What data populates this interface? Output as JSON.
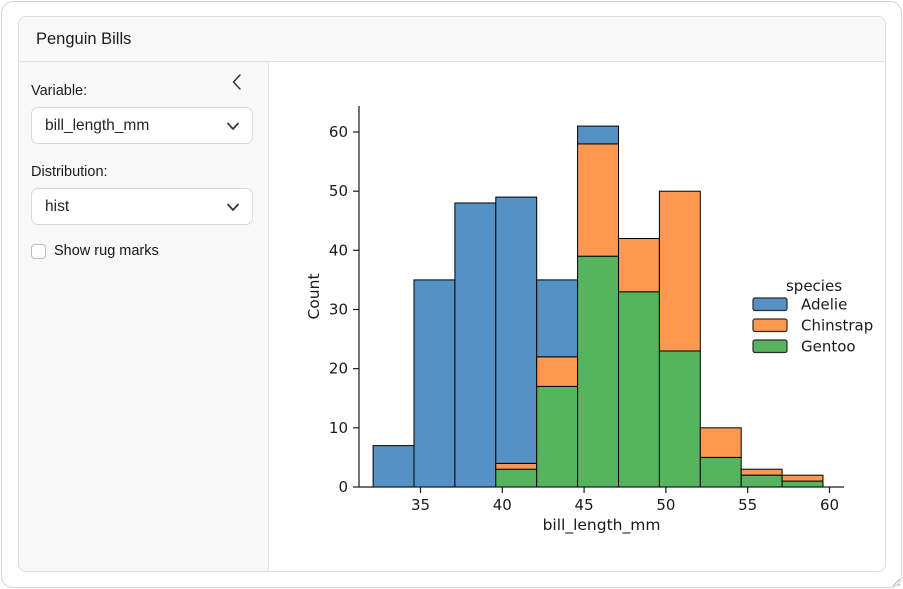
{
  "window": {
    "title": "Penguin Bills"
  },
  "sidebar": {
    "collapse_icon": "chevron-left",
    "variable_label": "Variable:",
    "variable_select": {
      "value": "bill_length_mm",
      "icon": "chevron-down"
    },
    "distribution_label": "Distribution:",
    "distribution_select": {
      "value": "hist",
      "icon": "chevron-down"
    },
    "rug_checkbox": {
      "label": "Show rug marks",
      "checked": false
    }
  },
  "chart_data": {
    "type": "bar",
    "subtype": "stacked-histogram",
    "title": "",
    "xlabel": "bill_length_mm",
    "ylabel": "Count",
    "bin_edges": [
      32.1,
      34.6,
      37.1,
      39.6,
      42.1,
      44.6,
      47.1,
      49.6,
      52.1,
      54.6,
      57.1,
      59.6
    ],
    "series": [
      {
        "name": "Gentoo",
        "color": "#56B45E",
        "values": [
          0,
          0,
          0,
          3,
          17,
          39,
          33,
          23,
          5,
          2,
          1
        ]
      },
      {
        "name": "Chinstrap",
        "color": "#FE9851",
        "values": [
          0,
          0,
          0,
          1,
          5,
          19,
          9,
          27,
          5,
          1,
          1
        ]
      },
      {
        "name": "Adelie",
        "color": "#5591C4",
        "values": [
          7,
          35,
          48,
          45,
          13,
          3,
          0,
          0,
          0,
          0,
          0
        ]
      }
    ],
    "bin_totals": [
      7,
      35,
      48,
      49,
      35,
      61,
      42,
      50,
      10,
      3,
      2
    ],
    "bar_edge_color": "#000000",
    "grid": false,
    "x_ticks": [
      35,
      40,
      45,
      50,
      55,
      60
    ],
    "y_ticks": [
      0,
      10,
      20,
      30,
      40,
      50,
      60
    ],
    "xlim": [
      31.3,
      60.9
    ],
    "ylim": [
      0,
      64.1
    ],
    "legend": {
      "title": "species",
      "position": "center right",
      "entries": [
        {
          "label": "Adelie",
          "color": "#5591C4"
        },
        {
          "label": "Chinstrap",
          "color": "#FE9851"
        },
        {
          "label": "Gentoo",
          "color": "#56B45E"
        }
      ]
    }
  }
}
